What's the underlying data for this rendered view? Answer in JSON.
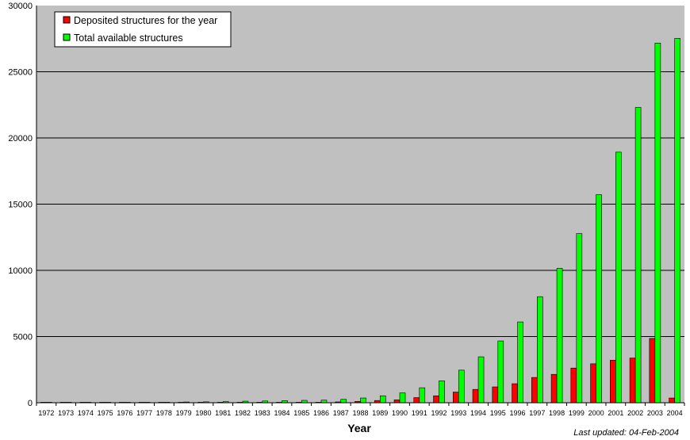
{
  "colors": {
    "plot_background": "#c0c0c0",
    "deposited": "#ff0000",
    "total": "#00ff00",
    "gridline": "#000000",
    "bar_outline": "#000000"
  },
  "chart_data": {
    "type": "bar",
    "xlabel": "Year",
    "ylabel": "",
    "ylim": [
      0,
      30000
    ],
    "yticks": [
      0,
      5000,
      10000,
      15000,
      20000,
      25000,
      30000
    ],
    "grid": true,
    "legend_position": "top-left",
    "categories": [
      "1972",
      "1973",
      "1974",
      "1975",
      "1976",
      "1977",
      "1978",
      "1979",
      "1980",
      "1981",
      "1982",
      "1983",
      "1984",
      "1985",
      "1986",
      "1987",
      "1988",
      "1989",
      "1990",
      "1991",
      "1992",
      "1993",
      "1994",
      "1995",
      "1996",
      "1997",
      "1998",
      "1999",
      "2000",
      "2001",
      "2002",
      "2003",
      "2004"
    ],
    "series": [
      {
        "name": "Deposited structures for the year",
        "color": "#ff0000",
        "values": [
          1,
          1,
          1,
          6,
          14,
          4,
          10,
          19,
          12,
          20,
          29,
          15,
          28,
          20,
          15,
          61,
          101,
          168,
          218,
          388,
          525,
          806,
          1008,
          1197,
          1436,
          1909,
          2143,
          2620,
          2942,
          3212,
          3377,
          4859,
          357
        ]
      },
      {
        "name": "Total available structures",
        "color": "#00ff00",
        "values": [
          1,
          2,
          3,
          9,
          23,
          27,
          37,
          56,
          68,
          88,
          117,
          132,
          160,
          180,
          195,
          256,
          357,
          525,
          743,
          1131,
          1656,
          2462,
          3470,
          4667,
          6103,
          8012,
          10155,
          12775,
          15717,
          18929,
          22306,
          27165,
          27522
        ]
      }
    ]
  },
  "footnote": "Last updated: 04-Feb-2004"
}
